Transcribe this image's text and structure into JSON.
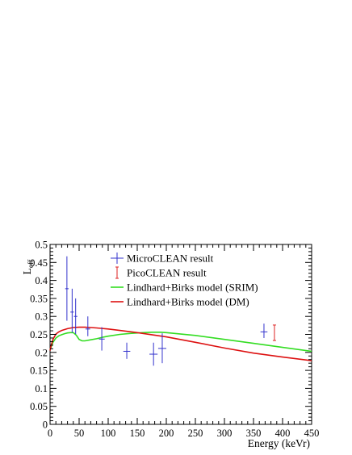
{
  "chart_data": {
    "type": "scatter",
    "xlabel": "Energy (keVr)",
    "ylabel": "L",
    "ylabel_sub": "eff",
    "xlim": [
      0,
      450
    ],
    "ylim": [
      0,
      0.5
    ],
    "x_ticks": [
      0,
      50,
      100,
      150,
      200,
      250,
      300,
      350,
      400,
      450
    ],
    "x_tick_labels": [
      "0",
      "50",
      "100",
      "150",
      "200",
      "250",
      "300",
      "350",
      "400",
      "450"
    ],
    "y_ticks": [
      0,
      0.05,
      0.1,
      0.15,
      0.2,
      0.25,
      0.3,
      0.35,
      0.4,
      0.45,
      0.5
    ],
    "y_tick_labels": [
      "0",
      "0.05",
      "0.1",
      "0.15",
      "0.2",
      "0.25",
      "0.3",
      "0.35",
      "0.4",
      "0.45",
      "0.5"
    ],
    "grid": false,
    "legend_position": "top-center",
    "series": [
      {
        "name": "MicroCLEAN result",
        "kind": "points",
        "color": "#3333cc",
        "points": [
          {
            "x": 29,
            "y": 0.377,
            "xerr": 3,
            "ylo": 0.288,
            "yhi": 0.467
          },
          {
            "x": 38,
            "y": 0.312,
            "xerr": 3,
            "ylo": 0.255,
            "yhi": 0.377
          },
          {
            "x": 44,
            "y": 0.3,
            "xerr": 3,
            "ylo": 0.251,
            "yhi": 0.35
          },
          {
            "x": 65,
            "y": 0.265,
            "xerr": 4,
            "ylo": 0.245,
            "yhi": 0.3
          },
          {
            "x": 89,
            "y": 0.237,
            "xerr": 5,
            "ylo": 0.205,
            "yhi": 0.27
          },
          {
            "x": 132,
            "y": 0.203,
            "xerr": 6,
            "ylo": 0.182,
            "yhi": 0.227
          },
          {
            "x": 178,
            "y": 0.195,
            "xerr": 7,
            "ylo": 0.163,
            "yhi": 0.227
          },
          {
            "x": 193,
            "y": 0.211,
            "xerr": 7,
            "ylo": 0.17,
            "yhi": 0.253
          },
          {
            "x": 368,
            "y": 0.257,
            "xerr": 6,
            "ylo": 0.24,
            "yhi": 0.28
          }
        ]
      },
      {
        "name": "PicoCLEAN result",
        "kind": "points",
        "color": "#dd2222",
        "points": [
          {
            "x": 386,
            "y": 0.255,
            "xerr": 0,
            "ylo": 0.233,
            "yhi": 0.276
          }
        ]
      },
      {
        "name": "Lindhard+Birks model (SRIM)",
        "kind": "line",
        "color": "#33dd22",
        "x": [
          0,
          2,
          5,
          10,
          15,
          20,
          25,
          30,
          35,
          40,
          45,
          50,
          55,
          60,
          70,
          80,
          90,
          100,
          120,
          140,
          160,
          175,
          190,
          200,
          250,
          300,
          350,
          400,
          450
        ],
        "y": [
          0.207,
          0.215,
          0.228,
          0.24,
          0.246,
          0.249,
          0.252,
          0.254,
          0.255,
          0.255,
          0.248,
          0.236,
          0.232,
          0.232,
          0.235,
          0.238,
          0.242,
          0.245,
          0.25,
          0.253,
          0.255,
          0.256,
          0.256,
          0.255,
          0.247,
          0.236,
          0.225,
          0.214,
          0.203
        ]
      },
      {
        "name": "Lindhard+Birks model (DM)",
        "kind": "line",
        "color": "#dd1111",
        "x": [
          0,
          2,
          5,
          10,
          15,
          20,
          30,
          40,
          50,
          60,
          70,
          80,
          100,
          120,
          150,
          200,
          250,
          300,
          350,
          400,
          450
        ],
        "y": [
          0.205,
          0.22,
          0.236,
          0.251,
          0.257,
          0.261,
          0.266,
          0.269,
          0.27,
          0.27,
          0.269,
          0.268,
          0.265,
          0.261,
          0.255,
          0.243,
          0.228,
          0.212,
          0.198,
          0.187,
          0.177
        ]
      }
    ]
  }
}
